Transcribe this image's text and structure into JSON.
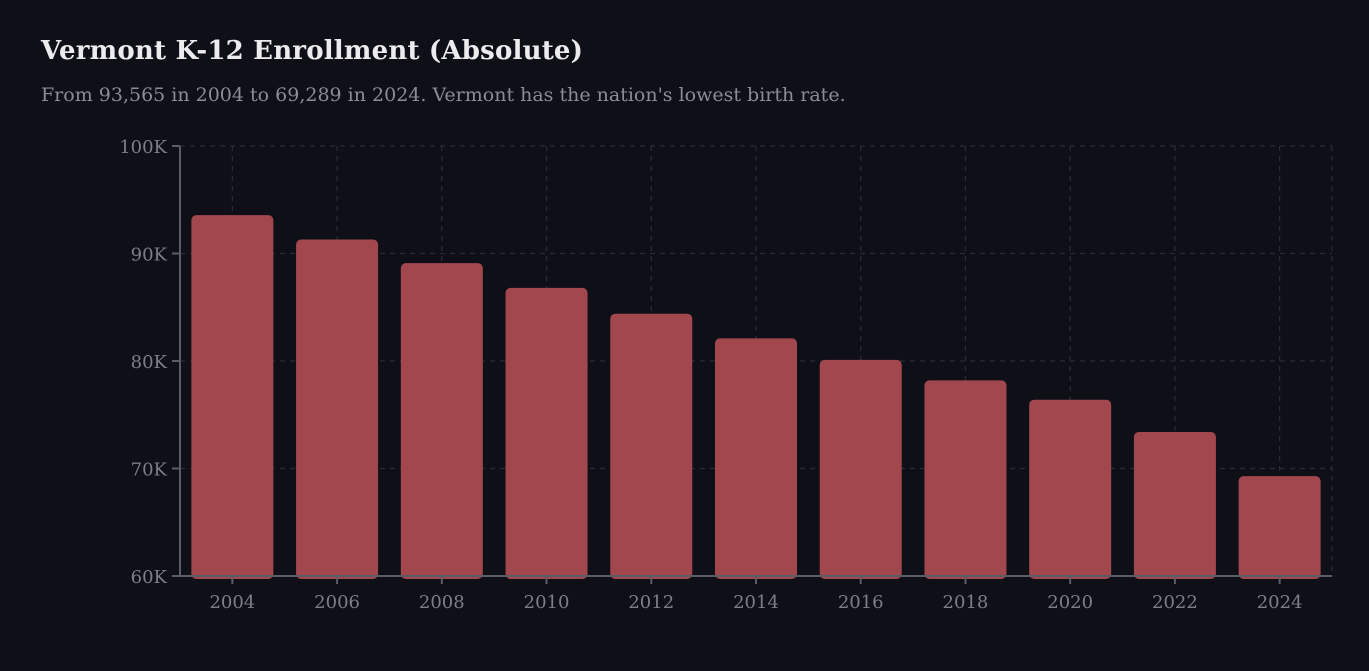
{
  "chart_data": {
    "type": "bar",
    "title": "Vermont K-12 Enrollment (Absolute)",
    "subtitle": "From 93,565 in 2004 to 69,289 in 2024. Vermont has the nation's lowest birth rate.",
    "categories": [
      "2004",
      "2006",
      "2008",
      "2010",
      "2012",
      "2014",
      "2016",
      "2018",
      "2020",
      "2022",
      "2024"
    ],
    "values": [
      93565,
      91300,
      89100,
      86800,
      84400,
      82100,
      80100,
      78200,
      76400,
      73400,
      69289
    ],
    "ylim": [
      60000,
      100000
    ],
    "yticks": [
      60000,
      70000,
      80000,
      90000,
      100000
    ],
    "ytick_labels": [
      "60K",
      "70K",
      "80K",
      "90K",
      "100K"
    ],
    "xlabel": "",
    "ylabel": "",
    "grid": true,
    "legend": "none"
  },
  "colors": {
    "background": "#0f0f18",
    "bar": "#a3474e",
    "grid": "#2a2a36",
    "axis": "#5c5c66",
    "text": "#7e7e87"
  }
}
